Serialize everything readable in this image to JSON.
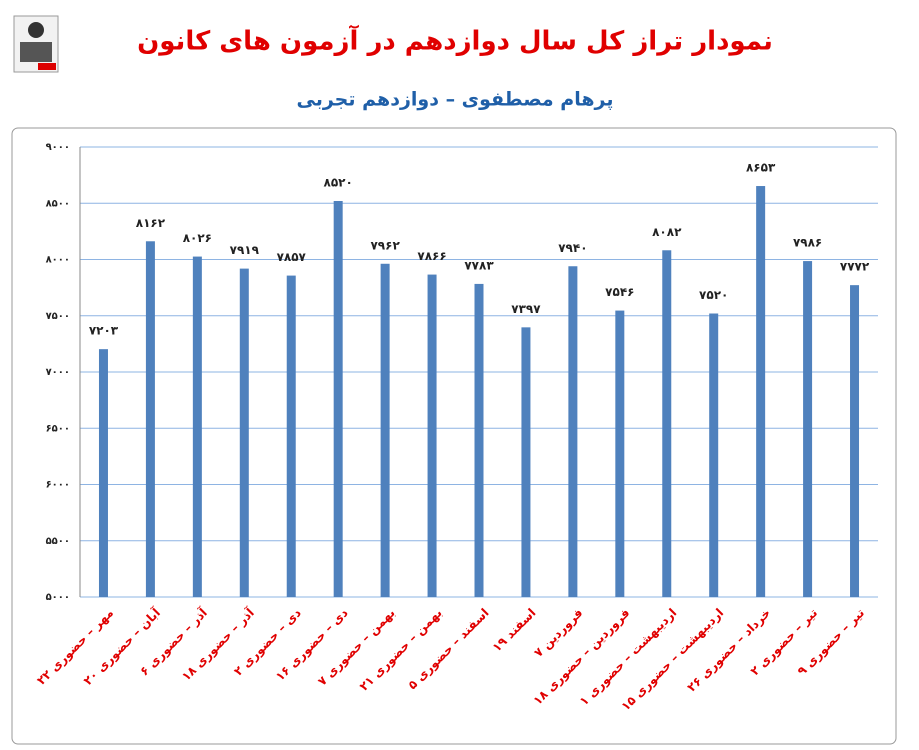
{
  "chart_data": {
    "type": "bar",
    "title": "نمودار تراز کل سال دوازدهم در آزمون های کانون",
    "subtitle": "پرهام مصطفوی – دوازدهم تجربی",
    "categories": [
      "۲۲ مهر – حضوری",
      "۲۰ آبان – حضوری",
      "۶ آذر – حضوری",
      "۱۸ آذر – حضوری",
      "۲ دی – حضوری",
      "۱۶ دی – حضوری",
      "۷ بهمن – حضوری",
      "۲۱ بهمن – حضوری",
      "۵ اسفند – حضوری",
      "۱۹ اسفند",
      "۷ فروردین",
      "۱۸ فروردین – حضوری",
      "۱ اردیبهشت – حضوری",
      "۱۵ اردیبهشت – حضوری",
      "۲۶ خرداد – حضوری",
      "۲ تیر – حضوری",
      "۹ تیر – حضوری"
    ],
    "values": [
      7203,
      8162,
      8026,
      7919,
      7857,
      8520,
      7962,
      7866,
      7783,
      7397,
      7940,
      7546,
      8082,
      7520,
      8653,
      7986,
      7772
    ],
    "value_labels": [
      "۷۲۰۳",
      "۸۱۶۲",
      "۸۰۲۶",
      "۷۹۱۹",
      "۷۸۵۷",
      "۸۵۲۰",
      "۷۹۶۲",
      "۷۸۶۶",
      "۷۷۸۳",
      "۷۳۹۷",
      "۷۹۴۰",
      "۷۵۴۶",
      "۸۰۸۲",
      "۷۵۲۰",
      "۸۶۵۳",
      "۷۹۸۶",
      "۷۷۷۲"
    ],
    "color": "#4f81bd",
    "ylim": [
      5000,
      9000
    ],
    "yticks": [
      {
        "value": 5000,
        "label": "۵۰۰۰"
      },
      {
        "value": 5500,
        "label": "۵۵۰۰"
      },
      {
        "value": 6000,
        "label": "۶۰۰۰"
      },
      {
        "value": 6500,
        "label": "۶۵۰۰"
      },
      {
        "value": 7000,
        "label": "۷۰۰۰"
      },
      {
        "value": 7500,
        "label": "۷۵۰۰"
      },
      {
        "value": 8000,
        "label": "۸۰۰۰"
      },
      {
        "value": 8500,
        "label": "۸۵۰۰"
      },
      {
        "value": 9000,
        "label": "۹۰۰۰"
      }
    ],
    "grid": true
  }
}
